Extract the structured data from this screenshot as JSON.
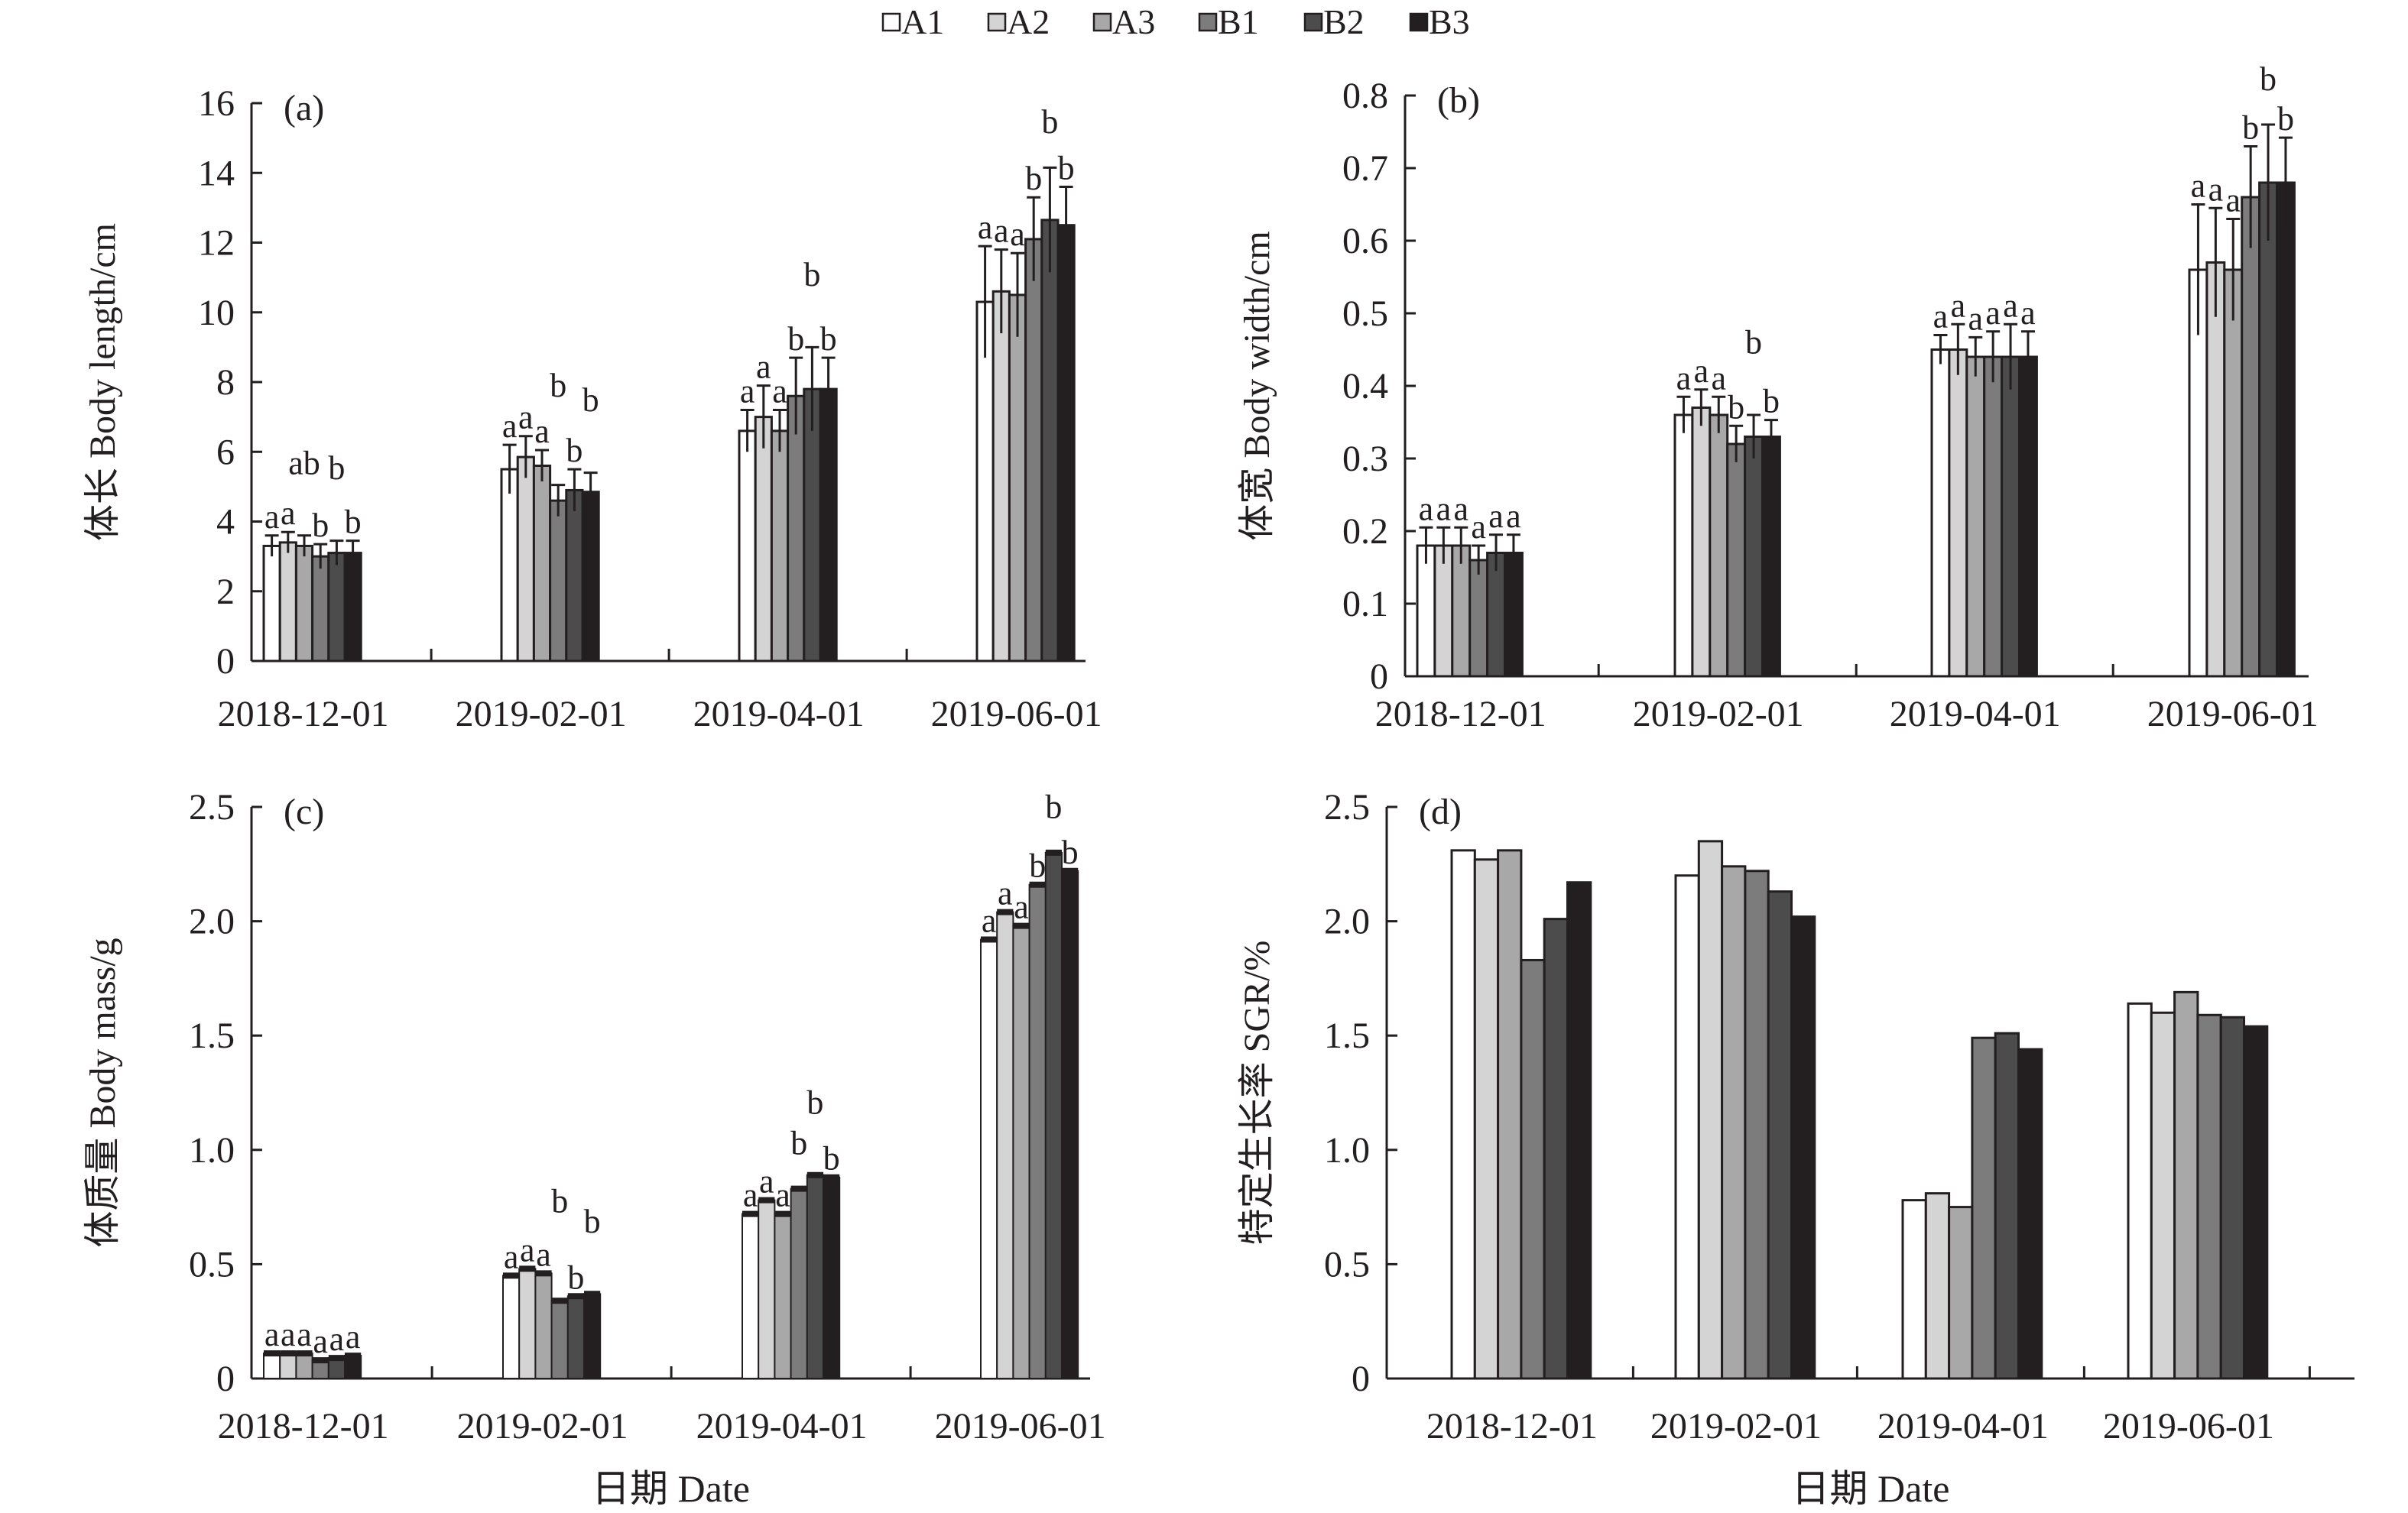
{
  "legend": {
    "position": "top-center",
    "items": [
      {
        "name": "A1",
        "color": "#ffffff"
      },
      {
        "name": "A2",
        "color": "#d4d4d4"
      },
      {
        "name": "A3",
        "color": "#a8a8a8"
      },
      {
        "name": "B1",
        "color": "#7c7c7c"
      },
      {
        "name": "B2",
        "color": "#4c4c4c"
      },
      {
        "name": "B3",
        "color": "#231f20"
      }
    ]
  },
  "chart_data": [
    {
      "panel": "(a)",
      "type": "bar",
      "ylabel": "体长 Body length/cm",
      "xlabel": "",
      "ylim": [
        0,
        16
      ],
      "yticks": [
        "0",
        "2",
        "4",
        "6",
        "8",
        "10",
        "12",
        "14",
        "16"
      ],
      "categories": [
        "2018-12-01",
        "2019-02-01",
        "2019-04-01",
        "2019-06-01"
      ],
      "series": [
        {
          "name": "A1",
          "values": [
            3.3,
            5.5,
            6.6,
            10.3
          ],
          "errors": [
            0.3,
            0.7,
            0.6,
            1.6
          ],
          "letters": [
            "a",
            "a",
            "a",
            "a"
          ]
        },
        {
          "name": "A2",
          "values": [
            3.4,
            5.85,
            7.0,
            10.6
          ],
          "errors": [
            0.3,
            0.6,
            0.9,
            1.2
          ],
          "letters": [
            "a",
            "a",
            "a",
            "a"
          ]
        },
        {
          "name": "A3",
          "values": [
            3.3,
            5.6,
            6.6,
            10.5
          ],
          "errors": [
            0.3,
            0.45,
            0.6,
            1.2
          ],
          "letters": [
            "ab",
            "a",
            "a",
            "a"
          ]
        },
        {
          "name": "B1",
          "values": [
            3.0,
            4.6,
            7.6,
            12.1
          ],
          "errors": [
            0.35,
            0.45,
            1.1,
            1.2
          ],
          "letters": [
            "b",
            "b",
            "b",
            "b"
          ]
        },
        {
          "name": "B2",
          "values": [
            3.1,
            4.9,
            7.8,
            12.65
          ],
          "errors": [
            0.35,
            0.6,
            1.2,
            1.5
          ],
          "letters": [
            "b",
            "b",
            "b",
            "b"
          ]
        },
        {
          "name": "B3",
          "values": [
            3.1,
            4.85,
            7.8,
            12.5
          ],
          "errors": [
            0.35,
            0.55,
            0.9,
            1.1
          ],
          "letters": [
            "b",
            "b",
            "b",
            "b"
          ]
        }
      ]
    },
    {
      "panel": "(b)",
      "type": "bar",
      "ylabel": "体宽 Body width/cm",
      "xlabel": "",
      "ylim": [
        0,
        0.8
      ],
      "yticks": [
        "0",
        "0.1",
        "0.2",
        "0.3",
        "0.4",
        "0.5",
        "0.6",
        "0.7",
        "0.8"
      ],
      "categories": [
        "2018-12-01",
        "2019-02-01",
        "2019-04-01",
        "2019-06-01"
      ],
      "series": [
        {
          "name": "A1",
          "values": [
            0.18,
            0.36,
            0.45,
            0.56
          ],
          "errors": [
            0.025,
            0.025,
            0.02,
            0.09
          ],
          "letters": [
            "a",
            "a",
            "a",
            "a"
          ]
        },
        {
          "name": "A2",
          "values": [
            0.18,
            0.37,
            0.45,
            0.57
          ],
          "errors": [
            0.025,
            0.025,
            0.035,
            0.075
          ],
          "letters": [
            "a",
            "a",
            "a",
            "a"
          ]
        },
        {
          "name": "A3",
          "values": [
            0.18,
            0.36,
            0.44,
            0.56
          ],
          "errors": [
            0.025,
            0.025,
            0.027,
            0.07
          ],
          "letters": [
            "a",
            "a",
            "a",
            "a"
          ]
        },
        {
          "name": "B1",
          "values": [
            0.16,
            0.32,
            0.44,
            0.66
          ],
          "errors": [
            0.02,
            0.025,
            0.035,
            0.07
          ],
          "letters": [
            "a",
            "b",
            "a",
            "b"
          ]
        },
        {
          "name": "B2",
          "values": [
            0.17,
            0.33,
            0.44,
            0.68
          ],
          "errors": [
            0.025,
            0.03,
            0.045,
            0.08
          ],
          "letters": [
            "a",
            "b",
            "a",
            "b"
          ]
        },
        {
          "name": "B3",
          "values": [
            0.17,
            0.33,
            0.44,
            0.68
          ],
          "errors": [
            0.025,
            0.023,
            0.035,
            0.062
          ],
          "letters": [
            "a",
            "b",
            "a",
            "b"
          ]
        }
      ]
    },
    {
      "panel": "(c)",
      "type": "bar",
      "ylabel": "体质量 Body mass/g",
      "xlabel": "日期 Date",
      "ylim": [
        0,
        2.5
      ],
      "yticks": [
        "0",
        "0.5",
        "1.0",
        "1.5",
        "2.0",
        "2.5"
      ],
      "categories": [
        "2018-12-01",
        "2019-02-01",
        "2019-04-01",
        "2019-06-01"
      ],
      "series": [
        {
          "name": "A1",
          "values": [
            0.11,
            0.45,
            0.72,
            1.92
          ],
          "letters": [
            "a",
            "a",
            "a",
            "a"
          ]
        },
        {
          "name": "A2",
          "values": [
            0.11,
            0.48,
            0.78,
            2.04
          ],
          "letters": [
            "a",
            "a",
            "a",
            "a"
          ]
        },
        {
          "name": "A3",
          "values": [
            0.11,
            0.46,
            0.72,
            1.98
          ],
          "letters": [
            "a",
            "a",
            "a",
            "a"
          ]
        },
        {
          "name": "B1",
          "values": [
            0.08,
            0.34,
            0.83,
            2.16
          ],
          "letters": [
            "a",
            "b",
            "b",
            "b"
          ]
        },
        {
          "name": "B2",
          "values": [
            0.09,
            0.36,
            0.89,
            2.3
          ],
          "letters": [
            "a",
            "b",
            "b",
            "b"
          ]
        },
        {
          "name": "B3",
          "values": [
            0.1,
            0.37,
            0.88,
            2.22
          ],
          "letters": [
            "a",
            "b",
            "b",
            "b"
          ]
        }
      ]
    },
    {
      "panel": "(d)",
      "type": "bar",
      "ylabel": "特定生长率 SGR/%",
      "xlabel": "日期 Date",
      "ylim": [
        0,
        2.5
      ],
      "yticks": [
        "0",
        "0.5",
        "1.0",
        "1.5",
        "2.0",
        "2.5"
      ],
      "categories": [
        "2018-12-01",
        "2019-02-01",
        "2019-04-01",
        "2019-06-01"
      ],
      "series": [
        {
          "name": "A1",
          "values": [
            2.31,
            2.2,
            0.78,
            1.64
          ]
        },
        {
          "name": "A2",
          "values": [
            2.27,
            2.35,
            0.81,
            1.6
          ]
        },
        {
          "name": "A3",
          "values": [
            2.31,
            2.24,
            0.75,
            1.69
          ]
        },
        {
          "name": "B1",
          "values": [
            1.83,
            2.22,
            1.49,
            1.59
          ]
        },
        {
          "name": "B2",
          "values": [
            2.01,
            2.13,
            1.51,
            1.58
          ]
        },
        {
          "name": "B3",
          "values": [
            2.17,
            2.02,
            1.44,
            1.54
          ]
        }
      ]
    }
  ]
}
